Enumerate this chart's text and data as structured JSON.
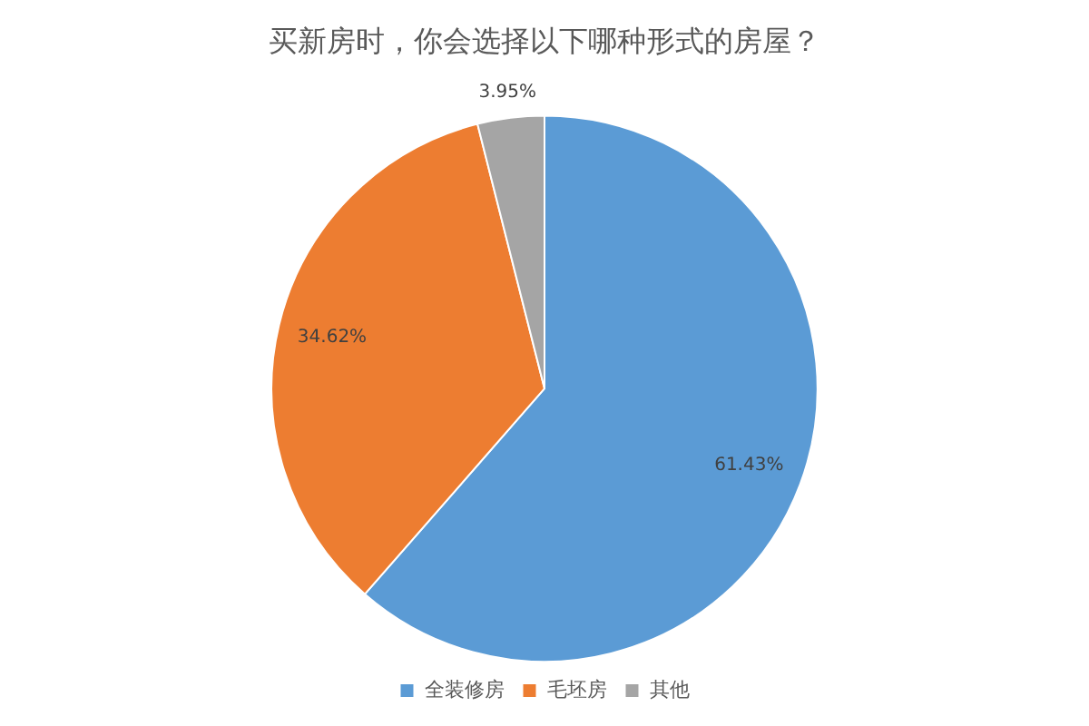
{
  "chart_data": {
    "type": "pie",
    "title": "买新房时，你会选择以下哪种形式的房屋？",
    "categories": [
      "全装修房",
      "毛坯房",
      "其他"
    ],
    "values": [
      61.43,
      34.62,
      3.95
    ],
    "value_labels": [
      "61.43%",
      "34.62%",
      "3.95%"
    ],
    "colors": [
      "#5b9bd5",
      "#ed7d31",
      "#a5a5a5"
    ],
    "legend": "bottom"
  }
}
